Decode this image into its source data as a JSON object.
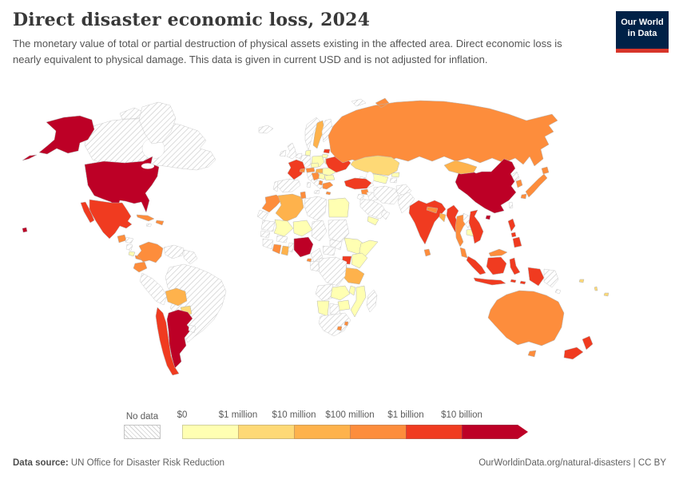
{
  "header": {
    "title": "Direct disaster economic loss, 2024",
    "subtitle": "The monetary value of total or partial destruction of physical assets existing in the affected area. Direct economic loss is nearly equivalent to physical damage. This data is given in current USD and is not adjusted for inflation."
  },
  "logo": {
    "line1": "Our World",
    "line2": "in Data",
    "navy": "#002147",
    "red": "#d8352a"
  },
  "legend": {
    "no_data_label": "No data"
  },
  "footer": {
    "source_label": "Data source:",
    "source": " UN Office for Disaster Risk Reduction",
    "right": "OurWorldinData.org/natural-disasters | CC BY"
  },
  "chart_data": {
    "type": "heatmap",
    "map_type": "world-choropleth",
    "title": "Direct disaster economic loss, 2024",
    "unit": "current USD",
    "legend_position": "bottom",
    "no_data_style": "hatched",
    "bins": [
      {
        "label": "$0",
        "color": "#ffffb2"
      },
      {
        "label": "$1 million",
        "color": "#fed976"
      },
      {
        "label": "$10 million",
        "color": "#feb24c"
      },
      {
        "label": "$100 million",
        "color": "#fd8d3c"
      },
      {
        "label": "$1 billion",
        "color": "#f03b20"
      },
      {
        "label": "$10 billion",
        "color": "#bd0026"
      }
    ],
    "countries": {
      "canada": null,
      "greenland": null,
      "iceland": null,
      "united-states": 5,
      "mexico": 4,
      "guatemala": 3,
      "honduras": null,
      "nicaragua": null,
      "costa-rica": 0,
      "panama": 3,
      "cuba": 3,
      "jamaica": null,
      "dominican-republic": 3,
      "colombia": 3,
      "venezuela": null,
      "guyana": null,
      "ecuador": 3,
      "peru": null,
      "brazil": null,
      "bolivia": 2,
      "paraguay": 1,
      "chile": 4,
      "argentina": 5,
      "uruguay": null,
      "united-kingdom": null,
      "ireland": null,
      "norway": null,
      "sweden": 2,
      "finland": null,
      "denmark": 0,
      "latvia": 4,
      "lithuania": 0,
      "belarus": 0,
      "poland": 0,
      "germany": null,
      "netherlands": null,
      "france": 4,
      "spain": null,
      "portugal": null,
      "italy": null,
      "switzerland": 3,
      "austria": 3,
      "czechia": 0,
      "hungary": 2,
      "croatia": 3,
      "serbia": 0,
      "albania": 3,
      "greece": 3,
      "romania": 0,
      "bulgaria": 0,
      "ukraine": 4,
      "russia": 3,
      "kazakhstan": 1,
      "uzbekistan": 0,
      "turkmenistan": null,
      "kyrgyzstan": 0,
      "tajikistan": null,
      "turkey": 4,
      "syria": 3,
      "iraq": null,
      "iran": null,
      "saudi-arabia": null,
      "yemen": 0,
      "oman": null,
      "jordan": null,
      "afghanistan": null,
      "pakistan": null,
      "india": 4,
      "nepal": 3,
      "bangladesh": 2,
      "sri-lanka": 3,
      "china": 5,
      "mongolia": 2,
      "taiwan": null,
      "north-korea": null,
      "south-korea": 3,
      "japan": 3,
      "myanmar": 4,
      "thailand": 3,
      "laos": null,
      "cambodia": 0,
      "vietnam": 4,
      "malaysia": 3,
      "indonesia": 4,
      "papua-new-guinea": null,
      "philippines": 4,
      "australia": 3,
      "new-zealand": 4,
      "fiji": 1,
      "vanuatu": 1,
      "solomon-islands": 1,
      "morocco": 3,
      "western-sahara": null,
      "algeria": 2,
      "tunisia": 3,
      "libya": null,
      "egypt": 0,
      "mauritania": null,
      "mali": 0,
      "niger": 0,
      "chad": null,
      "sudan": null,
      "south-sudan": null,
      "ethiopia": 0,
      "somalia": 0,
      "kenya": 0,
      "uganda": 4,
      "rwanda": 3,
      "tanzania": 2,
      "senegal": null,
      "guinea": null,
      "burkina-faso": null,
      "ivory-coast": 3,
      "ghana": 2,
      "benin": null,
      "nigeria": 5,
      "cameroon": null,
      "central-african-republic": null,
      "democratic-republic-of-congo": null,
      "gabon": null,
      "equatorial-guinea": 3,
      "angola": null,
      "zambia": 0,
      "malawi": 0,
      "mozambique": 0,
      "zimbabwe": 0,
      "botswana": null,
      "namibia": 0,
      "south-africa": null,
      "lesotho": 3,
      "eswatini": 3,
      "madagascar": null
    }
  }
}
